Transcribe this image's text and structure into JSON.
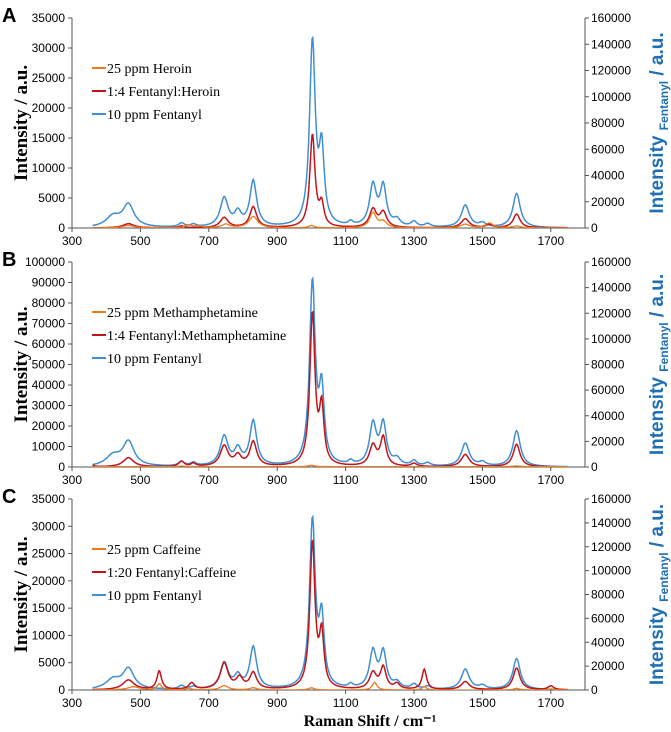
{
  "figure": {
    "xlabel": "Raman Shift / cm⁻¹",
    "ylabel_left": "Intensity / a.u.",
    "ylabel_right_main": "Intensity",
    "ylabel_right_sub": "Fentanyl",
    "ylabel_right_tail": "/ a.u.",
    "colors": {
      "heroin_like": "#f07a1a",
      "mixture": "#c0151b",
      "fentanyl": "#3f8fd3",
      "right_axis_label": "#1f6fb5"
    }
  },
  "chart_data": [
    {
      "type": "line",
      "panel_label": "A",
      "xlim": [
        300,
        1800
      ],
      "x_ticks": [
        300,
        500,
        700,
        900,
        1100,
        1300,
        1500,
        1700
      ],
      "ylim_left": [
        0,
        35000
      ],
      "y_ticks_left": [
        0,
        5000,
        10000,
        15000,
        20000,
        25000,
        30000,
        35000
      ],
      "ylim_right": [
        0,
        160000
      ],
      "y_ticks_right": [
        0,
        20000,
        40000,
        60000,
        80000,
        100000,
        120000,
        140000,
        160000
      ],
      "series": [
        {
          "name": "25 ppm Heroin",
          "color": "#f07a1a",
          "axis": "left",
          "baseline": 0,
          "peaks": [
            [
              465,
              400,
              22
            ],
            [
              640,
              500,
              12
            ],
            [
              670,
              300,
              12
            ],
            [
              750,
              600,
              14
            ],
            [
              830,
              1900,
              16
            ],
            [
              1000,
              400,
              10
            ],
            [
              1180,
              2500,
              12
            ],
            [
              1210,
              1000,
              12
            ],
            [
              1450,
              600,
              16
            ],
            [
              1520,
              800,
              14
            ],
            [
              1600,
              300,
              14
            ]
          ]
        },
        {
          "name": "1:4 Fentanyl:Heroin",
          "color": "#c0151b",
          "axis": "left",
          "baseline": 0,
          "peaks": [
            [
              465,
              700,
              20
            ],
            [
              620,
              300,
              10
            ],
            [
              745,
              1700,
              14
            ],
            [
              830,
              3500,
              12
            ],
            [
              1003,
              15400,
              9
            ],
            [
              1030,
              3500,
              8
            ],
            [
              1180,
              3000,
              12
            ],
            [
              1210,
              2500,
              12
            ],
            [
              1450,
              1500,
              14
            ],
            [
              1520,
              500,
              12
            ],
            [
              1600,
              2300,
              12
            ]
          ]
        },
        {
          "name": "10 ppm Fentanyl",
          "color": "#3f8fd3",
          "axis": "right",
          "baseline": 0,
          "peaks": [
            [
              420,
              8000,
              25
            ],
            [
              465,
              17000,
              20
            ],
            [
              620,
              3000,
              10
            ],
            [
              655,
              2000,
              10
            ],
            [
              745,
              22000,
              14
            ],
            [
              785,
              10000,
              12
            ],
            [
              830,
              35000,
              12
            ],
            [
              1003,
              140000,
              10
            ],
            [
              1030,
              55000,
              9
            ],
            [
              1115,
              3000,
              8
            ],
            [
              1180,
              31000,
              12
            ],
            [
              1210,
              30000,
              11
            ],
            [
              1250,
              5000,
              12
            ],
            [
              1300,
              4000,
              10
            ],
            [
              1340,
              2500,
              10
            ],
            [
              1450,
              17000,
              14
            ],
            [
              1500,
              3000,
              12
            ],
            [
              1600,
              26000,
              13
            ]
          ]
        }
      ]
    },
    {
      "type": "line",
      "panel_label": "B",
      "xlim": [
        300,
        1800
      ],
      "x_ticks": [
        300,
        500,
        700,
        900,
        1100,
        1300,
        1500,
        1700
      ],
      "ylim_left": [
        0,
        100000
      ],
      "y_ticks_left": [
        0,
        10000,
        20000,
        30000,
        40000,
        50000,
        60000,
        70000,
        80000,
        90000,
        100000
      ],
      "ylim_right": [
        0,
        160000
      ],
      "y_ticks_right": [
        0,
        20000,
        40000,
        60000,
        80000,
        100000,
        120000,
        140000,
        160000
      ],
      "series": [
        {
          "name": "25 ppm Methamphetamine",
          "color": "#f07a1a",
          "axis": "left",
          "baseline": 200,
          "peaks": [
            [
              620,
              300,
              10
            ],
            [
              1000,
              600,
              10
            ],
            [
              1600,
              300,
              12
            ]
          ]
        },
        {
          "name": "1:4 Fentanyl:Methamphetamine",
          "color": "#c0151b",
          "axis": "left",
          "baseline": 0,
          "peaks": [
            [
              355,
              1200,
              8
            ],
            [
              465,
              4500,
              18
            ],
            [
              620,
              2500,
              10
            ],
            [
              655,
              1500,
              8
            ],
            [
              745,
              10000,
              14
            ],
            [
              785,
              5000,
              12
            ],
            [
              830,
              12000,
              12
            ],
            [
              1003,
              74000,
              9
            ],
            [
              1030,
              27000,
              8
            ],
            [
              1180,
              10000,
              12
            ],
            [
              1210,
              14000,
              10
            ],
            [
              1300,
              1500,
              10
            ],
            [
              1450,
              6000,
              14
            ],
            [
              1600,
              11000,
              12
            ]
          ]
        },
        {
          "name": "10 ppm Fentanyl",
          "color": "#3f8fd3",
          "axis": "right",
          "baseline": 0,
          "peaks": [
            [
              420,
              8000,
              25
            ],
            [
              465,
              19000,
              20
            ],
            [
              620,
              3500,
              10
            ],
            [
              655,
              2500,
              10
            ],
            [
              745,
              23000,
              14
            ],
            [
              785,
              12000,
              12
            ],
            [
              830,
              35000,
              12
            ],
            [
              1003,
              142000,
              10
            ],
            [
              1030,
              55000,
              9
            ],
            [
              1115,
              3000,
              8
            ],
            [
              1180,
              32000,
              12
            ],
            [
              1210,
              32000,
              11
            ],
            [
              1250,
              5000,
              12
            ],
            [
              1300,
              4000,
              10
            ],
            [
              1340,
              2500,
              10
            ],
            [
              1450,
              18000,
              14
            ],
            [
              1500,
              3000,
              12
            ],
            [
              1600,
              28000,
              13
            ]
          ]
        }
      ]
    },
    {
      "type": "line",
      "panel_label": "C",
      "xlim": [
        300,
        1800
      ],
      "x_ticks": [
        300,
        500,
        700,
        900,
        1100,
        1300,
        1500,
        1700
      ],
      "ylim_left": [
        0,
        35000
      ],
      "y_ticks_left": [
        0,
        5000,
        10000,
        15000,
        20000,
        25000,
        30000,
        35000
      ],
      "ylim_right": [
        0,
        160000
      ],
      "y_ticks_right": [
        0,
        20000,
        40000,
        60000,
        80000,
        100000,
        120000,
        140000,
        160000
      ],
      "series": [
        {
          "name": "25 ppm Caffeine",
          "color": "#f07a1a",
          "axis": "left",
          "baseline": 0,
          "peaks": [
            [
              480,
              600,
              20
            ],
            [
              555,
              1100,
              8
            ],
            [
              640,
              300,
              10
            ],
            [
              745,
              800,
              14
            ],
            [
              830,
              400,
              12
            ],
            [
              1000,
              400,
              10
            ],
            [
              1185,
              1400,
              8
            ],
            [
              1330,
              600,
              8
            ],
            [
              1600,
              300,
              10
            ],
            [
              1700,
              200,
              10
            ]
          ]
        },
        {
          "name": "1:20 Fentanyl:Caffeine",
          "color": "#c0151b",
          "axis": "left",
          "baseline": 0,
          "peaks": [
            [
              465,
              1800,
              20
            ],
            [
              555,
              3400,
              8
            ],
            [
              650,
              1200,
              10
            ],
            [
              745,
              4800,
              14
            ],
            [
              790,
              2000,
              12
            ],
            [
              830,
              3000,
              12
            ],
            [
              1003,
              26800,
              9
            ],
            [
              1030,
              9500,
              8
            ],
            [
              1180,
              3000,
              12
            ],
            [
              1210,
              4000,
              10
            ],
            [
              1250,
              1000,
              10
            ],
            [
              1330,
              3700,
              8
            ],
            [
              1450,
              1500,
              14
            ],
            [
              1600,
              4000,
              12
            ],
            [
              1700,
              700,
              10
            ]
          ]
        },
        {
          "name": "10 ppm Fentanyl",
          "color": "#3f8fd3",
          "axis": "right",
          "baseline": 0,
          "peaks": [
            [
              420,
              8000,
              25
            ],
            [
              465,
              17000,
              20
            ],
            [
              620,
              3000,
              10
            ],
            [
              655,
              2000,
              10
            ],
            [
              745,
              22000,
              14
            ],
            [
              785,
              10000,
              12
            ],
            [
              830,
              35000,
              12
            ],
            [
              1003,
              140000,
              10
            ],
            [
              1030,
              55000,
              9
            ],
            [
              1115,
              3000,
              8
            ],
            [
              1180,
              31000,
              12
            ],
            [
              1210,
              30000,
              11
            ],
            [
              1250,
              5000,
              12
            ],
            [
              1300,
              4000,
              10
            ],
            [
              1340,
              2500,
              10
            ],
            [
              1450,
              17000,
              14
            ],
            [
              1500,
              3000,
              12
            ],
            [
              1600,
              26000,
              13
            ]
          ]
        }
      ]
    }
  ]
}
